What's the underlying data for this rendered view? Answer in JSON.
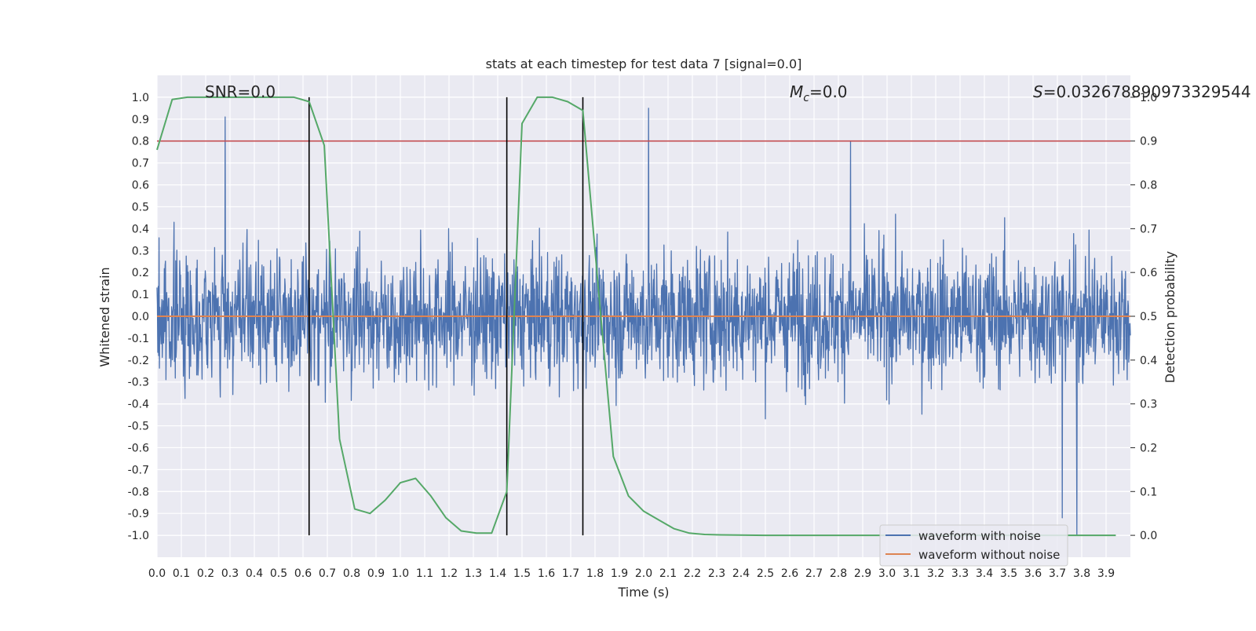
{
  "chart_data": {
    "type": "line",
    "title": "stats at each timestep for test data 7 [signal=0.0]",
    "xlabel": "Time (s)",
    "ylabel": "Whitened strain",
    "y2label": "Detection probability",
    "xlim": [
      0.0,
      4.0
    ],
    "ylim": [
      -1.1,
      1.1
    ],
    "y2lim": [
      -0.05,
      1.05
    ],
    "xticks": [
      "0.0",
      "0.1",
      "0.2",
      "0.3",
      "0.4",
      "0.5",
      "0.6",
      "0.7",
      "0.8",
      "0.9",
      "1.0",
      "1.1",
      "1.2",
      "1.3",
      "1.4",
      "1.5",
      "1.6",
      "1.7",
      "1.8",
      "1.9",
      "2.0",
      "2.1",
      "2.2",
      "2.3",
      "2.4",
      "2.5",
      "2.6",
      "2.7",
      "2.8",
      "2.9",
      "3.0",
      "3.1",
      "3.2",
      "3.3",
      "3.4",
      "3.5",
      "3.6",
      "3.7",
      "3.8",
      "3.9"
    ],
    "yticks": [
      "1.0",
      "0.9",
      "0.8",
      "0.7",
      "0.6",
      "0.5",
      "0.4",
      "0.3",
      "0.2",
      "0.1",
      "0.0",
      "-0.1",
      "-0.2",
      "-0.3",
      "-0.4",
      "-0.5",
      "-0.6",
      "-0.7",
      "-0.8",
      "-0.9",
      "-1.0"
    ],
    "y2ticks": [
      "1.0",
      "0.9",
      "0.8",
      "0.7",
      "0.6",
      "0.5",
      "0.4",
      "0.3",
      "0.2",
      "0.1",
      "0.0"
    ],
    "grid": true,
    "legend_position": "bottom-right",
    "annotations": {
      "snr": "SNR=0.0",
      "mc_symbol": "M",
      "mc_sub": "c",
      "mc_value": "=0.0",
      "s_symbol": "S",
      "s_value": "=0.032678890973329544"
    },
    "series": [
      {
        "name": "waveform with noise",
        "axis": "left",
        "color": "#4c72b0",
        "description_range": [
          -1.0,
          0.95
        ],
        "peaks": [
          {
            "x": 0.28,
            "y": 0.91
          },
          {
            "x": 2.02,
            "y": 0.95
          },
          {
            "x": 2.85,
            "y": 0.8
          },
          {
            "x": 3.78,
            "y": -1.0
          },
          {
            "x": 3.72,
            "y": -0.92
          }
        ]
      },
      {
        "name": "waveform without noise",
        "axis": "left",
        "color": "#dd8452",
        "x": [
          0.0,
          4.0
        ],
        "y": [
          0.0,
          0.0
        ]
      },
      {
        "name": "",
        "axis": "right",
        "color": "#55a868",
        "x": [
          0.0,
          0.0625,
          0.125,
          0.1875,
          0.25,
          0.3125,
          0.375,
          0.4375,
          0.5,
          0.5625,
          0.625,
          0.6875,
          0.75,
          0.8125,
          0.875,
          0.9375,
          1.0,
          1.0625,
          1.125,
          1.1875,
          1.25,
          1.3125,
          1.375,
          1.4375,
          1.5,
          1.5625,
          1.625,
          1.6875,
          1.75,
          1.8125,
          1.875,
          1.9375,
          2.0,
          2.0625,
          2.125,
          2.1875,
          2.25,
          2.3125,
          2.5,
          3.0,
          3.5,
          3.94
        ],
        "y": [
          0.88,
          0.995,
          1.0,
          1.0,
          1.0,
          1.0,
          1.0,
          1.0,
          1.0,
          1.0,
          0.99,
          0.89,
          0.22,
          0.06,
          0.05,
          0.08,
          0.12,
          0.13,
          0.09,
          0.04,
          0.01,
          0.005,
          0.005,
          0.1,
          0.94,
          1.0,
          1.0,
          0.99,
          0.97,
          0.57,
          0.18,
          0.09,
          0.055,
          0.035,
          0.015,
          0.005,
          0.002,
          0.001,
          0.0,
          0.0,
          0.0,
          0.0
        ]
      }
    ],
    "threshold": {
      "axis": "right",
      "value": 0.9,
      "color": "#c44e52"
    },
    "vlines": [
      0.625,
      1.4375,
      1.75
    ],
    "vline_range": [
      -1.0,
      1.0
    ]
  }
}
